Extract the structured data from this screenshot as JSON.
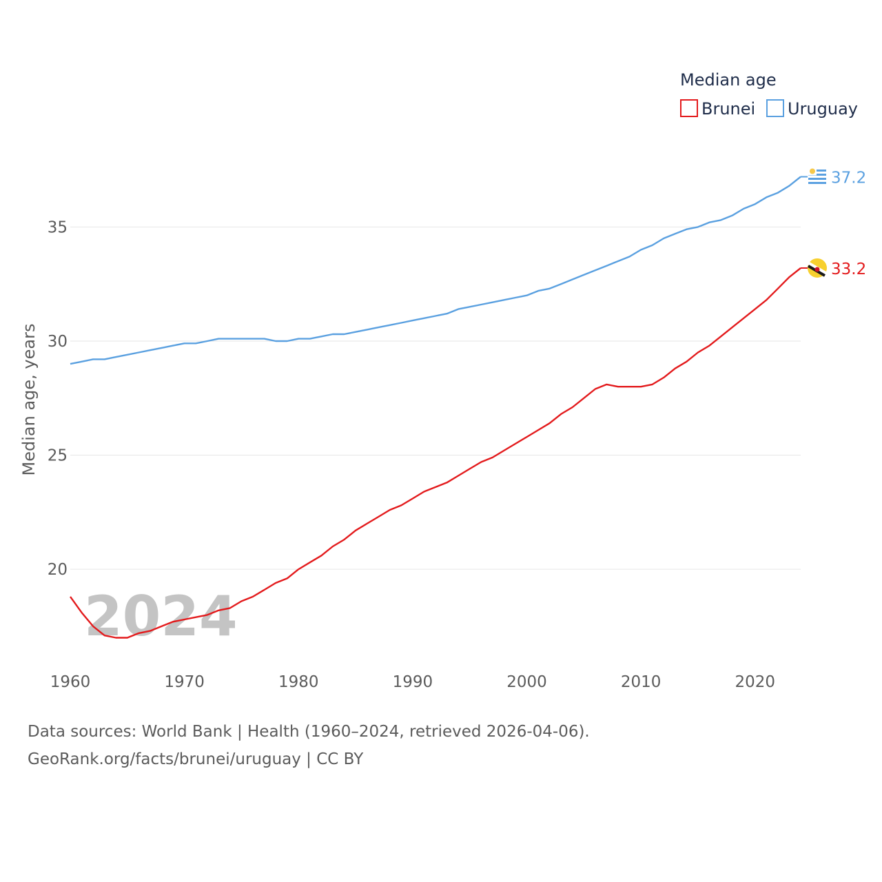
{
  "chart_data": {
    "type": "line",
    "title": "",
    "legend_title": "Median age",
    "legend_position": "top-right",
    "ylabel": "Median age, years",
    "xlabel": "",
    "xlim": [
      1960,
      2024
    ],
    "ylim": [
      16.2,
      38
    ],
    "x_ticks": [
      1960,
      1970,
      1980,
      1990,
      2000,
      2010,
      2020
    ],
    "y_ticks": [
      20,
      25,
      30,
      35
    ],
    "year_watermark": "2024",
    "x": [
      1960,
      1961,
      1962,
      1963,
      1964,
      1965,
      1966,
      1967,
      1968,
      1969,
      1970,
      1971,
      1972,
      1973,
      1974,
      1975,
      1976,
      1977,
      1978,
      1979,
      1980,
      1981,
      1982,
      1983,
      1984,
      1985,
      1986,
      1987,
      1988,
      1989,
      1990,
      1991,
      1992,
      1993,
      1994,
      1995,
      1996,
      1997,
      1998,
      1999,
      2000,
      2001,
      2002,
      2003,
      2004,
      2005,
      2006,
      2007,
      2008,
      2009,
      2010,
      2011,
      2012,
      2013,
      2014,
      2015,
      2016,
      2017,
      2018,
      2019,
      2020,
      2021,
      2022,
      2023,
      2024
    ],
    "series": [
      {
        "name": "Brunei",
        "color": "#e31a1c",
        "end_label": "33.2",
        "flag": "brunei-flag",
        "values": [
          18.8,
          18.1,
          17.5,
          17.1,
          17.0,
          17.0,
          17.2,
          17.3,
          17.5,
          17.7,
          17.8,
          17.9,
          18.0,
          18.2,
          18.3,
          18.6,
          18.8,
          19.1,
          19.4,
          19.6,
          20.0,
          20.3,
          20.6,
          21.0,
          21.3,
          21.7,
          22.0,
          22.3,
          22.6,
          22.8,
          23.1,
          23.4,
          23.6,
          23.8,
          24.1,
          24.4,
          24.7,
          24.9,
          25.2,
          25.5,
          25.8,
          26.1,
          26.4,
          26.8,
          27.1,
          27.5,
          27.9,
          28.1,
          28.0,
          28.0,
          28.0,
          28.1,
          28.4,
          28.8,
          29.1,
          29.5,
          29.8,
          30.2,
          30.6,
          31.0,
          31.4,
          31.8,
          32.3,
          32.8,
          33.2
        ]
      },
      {
        "name": "Uruguay",
        "color": "#5aa0e0",
        "end_label": "37.2",
        "flag": "uruguay-flag",
        "values": [
          29.0,
          29.1,
          29.2,
          29.2,
          29.3,
          29.4,
          29.5,
          29.6,
          29.7,
          29.8,
          29.9,
          29.9,
          30.0,
          30.1,
          30.1,
          30.1,
          30.1,
          30.1,
          30.0,
          30.0,
          30.1,
          30.1,
          30.2,
          30.3,
          30.3,
          30.4,
          30.5,
          30.6,
          30.7,
          30.8,
          30.9,
          31.0,
          31.1,
          31.2,
          31.4,
          31.5,
          31.6,
          31.7,
          31.8,
          31.9,
          32.0,
          32.2,
          32.3,
          32.5,
          32.7,
          32.9,
          33.1,
          33.3,
          33.5,
          33.7,
          34.0,
          34.2,
          34.5,
          34.7,
          34.9,
          35.0,
          35.2,
          35.3,
          35.5,
          35.8,
          36.0,
          36.3,
          36.5,
          36.8,
          37.2
        ]
      }
    ]
  },
  "source": {
    "line1": "Data sources: World Bank | Health (1960–2024, retrieved 2026-04-06).",
    "line2": "GeoRank.org/facts/brunei/uruguay | CC BY"
  }
}
